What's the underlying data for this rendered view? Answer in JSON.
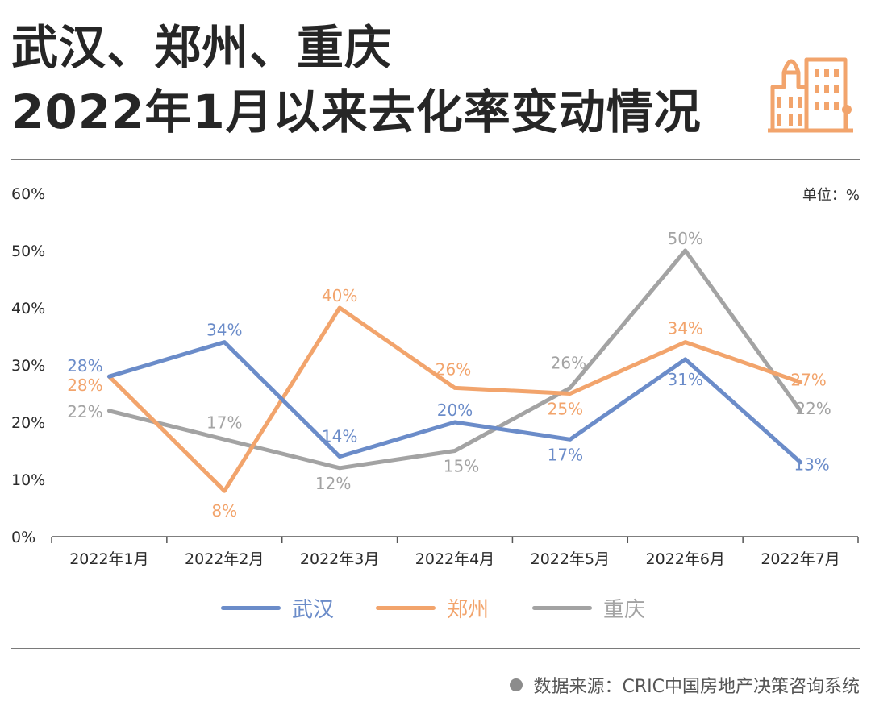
{
  "title_line1": "武汉、郑州、重庆",
  "title_line2": "2022年1月以来去化率变动情况",
  "unit_label": "单位：%",
  "source_label": "数据来源：CRIC中国房地产决策咨询系统",
  "logo_icon": "city-buildings-icon",
  "colors": {
    "wuhan": "#6b8cc9",
    "zhengzhou": "#f2a46c",
    "chongqing": "#a3a3a3",
    "axis": "#555555",
    "logo": "#f2a46c"
  },
  "chart_data": {
    "type": "line",
    "categories": [
      "2022年1月",
      "2022年2月",
      "2022年3月",
      "2022年4月",
      "2022年5月",
      "2022年6月",
      "2022年7月"
    ],
    "ylim": [
      0,
      60
    ],
    "yticks": [
      0,
      10,
      20,
      30,
      40,
      50,
      60
    ],
    "ytick_labels": [
      "0%",
      "10%",
      "20%",
      "30%",
      "40%",
      "50%",
      "60%"
    ],
    "grid": false,
    "legend_position": "bottom",
    "series": [
      {
        "name": "武汉",
        "color": "#6b8cc9",
        "values": [
          28,
          34,
          14,
          20,
          17,
          31,
          13
        ],
        "labels": [
          "28%",
          "34%",
          "14%",
          "20%",
          "17%",
          "31%",
          "13%"
        ]
      },
      {
        "name": "郑州",
        "color": "#f2a46c",
        "values": [
          28,
          8,
          40,
          26,
          25,
          34,
          27
        ],
        "labels": [
          "28%",
          "8%",
          "40%",
          "26%",
          "25%",
          "34%",
          "27%"
        ]
      },
      {
        "name": "重庆",
        "color": "#a3a3a3",
        "values": [
          22,
          17,
          12,
          15,
          26,
          50,
          22
        ],
        "labels": [
          "22%",
          "17%",
          "12%",
          "15%",
          "26%",
          "50%",
          "22%"
        ]
      }
    ]
  }
}
